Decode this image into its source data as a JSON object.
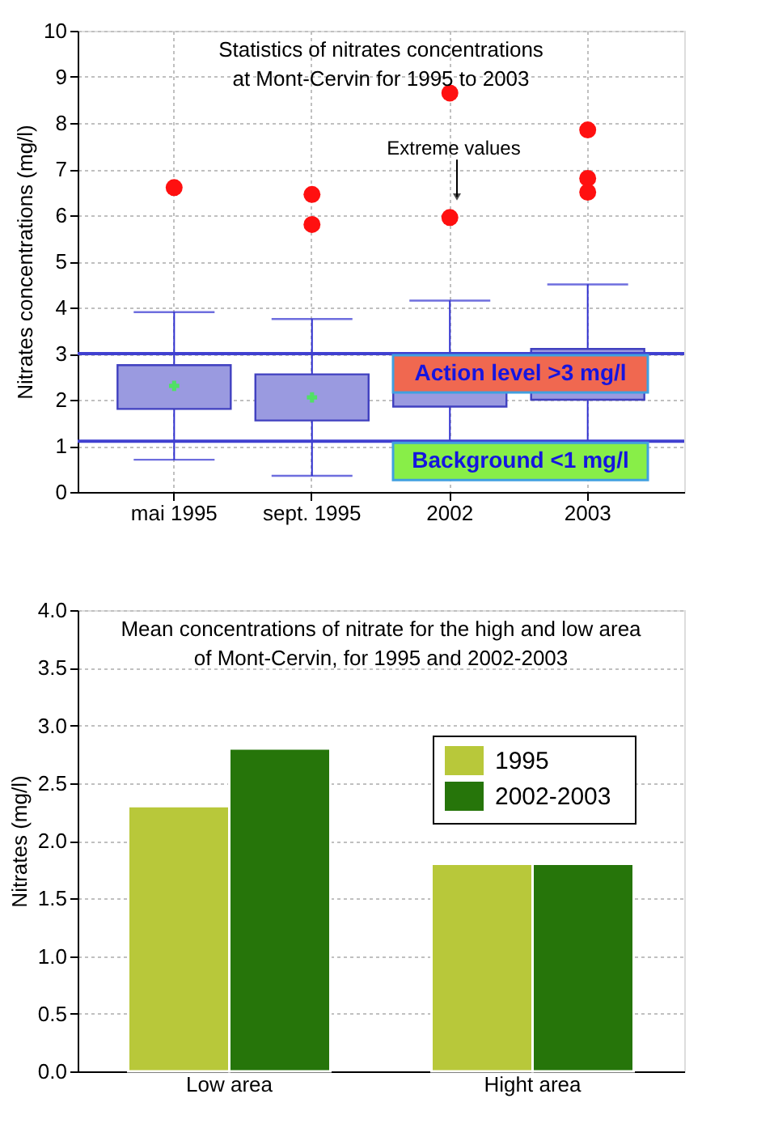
{
  "chart_data": [
    {
      "type": "box",
      "title": [
        "Statistics of nitrates concentrations",
        "at Mont-Cervin for 1995 to 2003"
      ],
      "ylabel": "Nitrates concentrations (mg/l)",
      "categories": [
        "mai 1995",
        "sept. 1995",
        "2002",
        "2003"
      ],
      "boxes": [
        {
          "low": 0.7,
          "q1": 1.8,
          "median": 2.3,
          "q3": 2.75,
          "high": 3.9,
          "outliers": [
            6.6
          ]
        },
        {
          "low": 0.35,
          "q1": 1.55,
          "median": 2.05,
          "q3": 2.55,
          "high": 3.75,
          "outliers": [
            6.45,
            5.8
          ]
        },
        {
          "low": 1.1,
          "q1": 1.85,
          "median": 2.35,
          "q3": 2.8,
          "high": 4.15,
          "outliers": [
            8.65,
            5.95
          ]
        },
        {
          "low": 1.1,
          "q1": 2.0,
          "median": 2.55,
          "q3": 3.1,
          "high": 4.5,
          "outliers": [
            7.85,
            6.8,
            6.5
          ]
        }
      ],
      "color": "#9a9ae0",
      "ylim": [
        0,
        10
      ],
      "yticks": [
        0,
        1,
        2,
        3,
        4,
        5,
        6,
        7,
        8,
        9,
        10
      ],
      "grid": true,
      "ref_lines": [
        {
          "axis": "y",
          "value": 3,
          "label": "Action level  >3 mg/l",
          "color": "#4040d0"
        },
        {
          "axis": "y",
          "value": 1.1,
          "label": "Background  <1 mg/l",
          "color": "#4040d0"
        }
      ],
      "annotations": [
        "Extreme values"
      ]
    },
    {
      "type": "bar",
      "title": [
        "Mean concentrations of nitrate for the high and low area",
        "of Mont-Cervin, for 1995 and 2002-2003"
      ],
      "ylabel": "Nitrates (mg/l)",
      "categories": [
        "Low area",
        "Hight area"
      ],
      "series": [
        {
          "name": "1995",
          "color": "#b8c83a",
          "values": [
            2.3,
            1.8
          ]
        },
        {
          "name": "2002-2003",
          "color": "#26750a",
          "values": [
            2.8,
            1.8
          ]
        }
      ],
      "ylim": [
        0,
        4
      ],
      "yticks": [
        {
          "value": 0,
          "label": "0.0"
        },
        {
          "value": 0.5,
          "label": "0.5"
        },
        {
          "value": 1,
          "label": "1.0"
        },
        {
          "value": 1.5,
          "label": "1.5"
        },
        {
          "value": 2,
          "label": "2.0"
        },
        {
          "value": 2.5,
          "label": "2.5"
        },
        {
          "value": 3,
          "label": "3.0"
        },
        {
          "value": 3.5,
          "label": "3.5"
        },
        {
          "value": 4,
          "label": "4.0"
        }
      ],
      "grid": "y",
      "legend": "top right"
    }
  ]
}
